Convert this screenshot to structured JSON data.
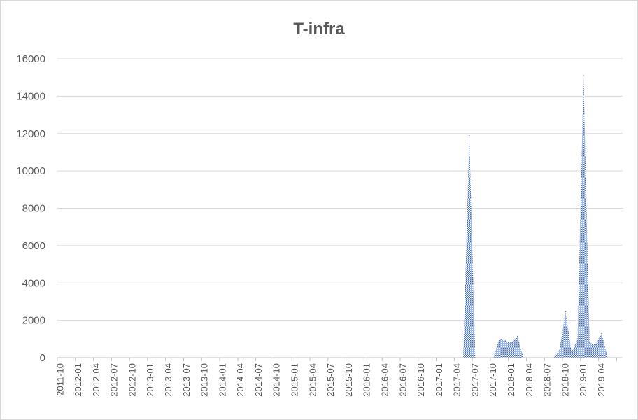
{
  "chart_data": {
    "type": "area",
    "title": "T-infra",
    "xlabel": "",
    "ylabel": "",
    "ylim": [
      0,
      16000
    ],
    "yticks": [
      0,
      2000,
      4000,
      6000,
      8000,
      10000,
      12000,
      14000,
      16000
    ],
    "grid": true,
    "legend": "none",
    "fill_color": "#4472c4",
    "x_start": "2011-10",
    "x_end": "2019-07",
    "tick_labels": [
      "2011-10",
      "2012-01",
      "2012-04",
      "2012-07",
      "2012-10",
      "2013-01",
      "2013-04",
      "2013-07",
      "2013-10",
      "2014-01",
      "2014-04",
      "2014-07",
      "2014-10",
      "2015-01",
      "2015-04",
      "2015-07",
      "2015-10",
      "2016-01",
      "2016-04",
      "2016-07",
      "2016-10",
      "2017-01",
      "2017-04",
      "2017-07",
      "2017-10",
      "2018-01",
      "2018-04",
      "2018-07",
      "2018-10",
      "2019-01",
      "2019-04"
    ],
    "points": [
      {
        "x": "2017-05",
        "y": 0
      },
      {
        "x": "2017-06",
        "y": 11900
      },
      {
        "x": "2017-07",
        "y": 0
      },
      {
        "x": "2017-08",
        "y": 0
      },
      {
        "x": "2017-09",
        "y": 0
      },
      {
        "x": "2017-10",
        "y": 0
      },
      {
        "x": "2017-11",
        "y": 1000
      },
      {
        "x": "2017-12",
        "y": 900
      },
      {
        "x": "2018-01",
        "y": 800
      },
      {
        "x": "2018-02",
        "y": 1150
      },
      {
        "x": "2018-03",
        "y": 0
      },
      {
        "x": "2018-04",
        "y": 0
      },
      {
        "x": "2018-05",
        "y": 0
      },
      {
        "x": "2018-06",
        "y": 0
      },
      {
        "x": "2018-07",
        "y": 0
      },
      {
        "x": "2018-08",
        "y": 0
      },
      {
        "x": "2018-09",
        "y": 400
      },
      {
        "x": "2018-10",
        "y": 2450
      },
      {
        "x": "2018-11",
        "y": 300
      },
      {
        "x": "2018-12",
        "y": 1000
      },
      {
        "x": "2019-01",
        "y": 15100
      },
      {
        "x": "2019-02",
        "y": 800
      },
      {
        "x": "2019-03",
        "y": 700
      },
      {
        "x": "2019-04",
        "y": 1300
      },
      {
        "x": "2019-05",
        "y": 0
      }
    ]
  }
}
